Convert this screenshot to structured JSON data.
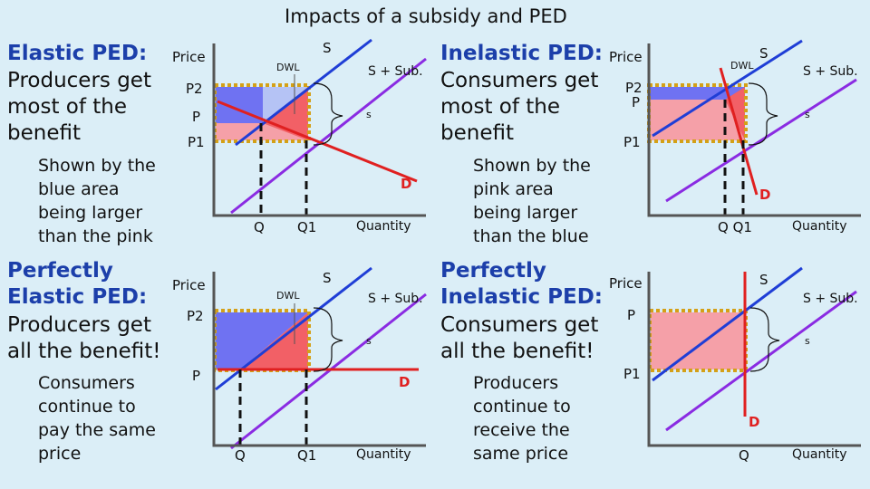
{
  "title": "Impacts of a subsidy and PED",
  "panels": {
    "elastic": {
      "heading": "Elastic PED:",
      "body": [
        "Producers get",
        "most of the",
        "benefit"
      ],
      "sub": [
        "Shown by the",
        "blue area",
        "being larger",
        "than the pink"
      ],
      "labels": {
        "price": "Price",
        "p2": "P2",
        "p": "P",
        "p1": "P1",
        "q": "Q",
        "q1": "Q1",
        "quantity": "Quantity",
        "s": "S",
        "s_sub": "S + Sub.",
        "s_small": "s",
        "dwl": "DWL",
        "d": "D"
      }
    },
    "inelastic": {
      "heading": "Inelastic PED:",
      "body": [
        "Consumers get",
        "most of the",
        "benefit"
      ],
      "sub": [
        "Shown by the",
        "pink area",
        "being larger",
        "than the blue"
      ],
      "labels": {
        "price": "Price",
        "p2": "P2",
        "p": "P",
        "p1": "P1",
        "qq1": "Q Q1",
        "quantity": "Quantity",
        "s": "S",
        "s_sub": "S + Sub.",
        "s_small": "s",
        "dwl": "DWL",
        "d": "D"
      }
    },
    "perf_elastic": {
      "heading": [
        "Perfectly",
        "Elastic PED:"
      ],
      "body": [
        "Producers get",
        "all the benefit!"
      ],
      "sub": [
        "Consumers",
        "continue to",
        "pay the same",
        "price"
      ],
      "labels": {
        "price": "Price",
        "p2": "P2",
        "p": "P",
        "q": "Q",
        "q1": "Q1",
        "quantity": "Quantity",
        "s": "S",
        "s_sub": "S + Sub.",
        "s_small": "s",
        "dwl": "DWL",
        "d": "D"
      }
    },
    "perf_inelastic": {
      "heading": [
        "Perfectly",
        "Inelastic PED:"
      ],
      "body": [
        "Consumers get",
        "all the benefit!"
      ],
      "sub": [
        "Producers",
        "continue to",
        "receive the",
        "same price"
      ],
      "labels": {
        "price": "Price",
        "p": "P",
        "p1": "P1",
        "q": "Q",
        "quantity": "Quantity",
        "s": "S",
        "s_sub": "S + Sub.",
        "s_small": "s",
        "d": "D"
      }
    }
  },
  "colors": {
    "supply": "#1f3ed6",
    "subsidy_supply": "#8a2be2",
    "demand": "#e02020",
    "producer_area": "#6f72f2",
    "consumer_area": "#f5a0a8",
    "dwl_area": "#f26066",
    "subsidy_box": "#d4a017",
    "heading": "#1c3faa"
  }
}
